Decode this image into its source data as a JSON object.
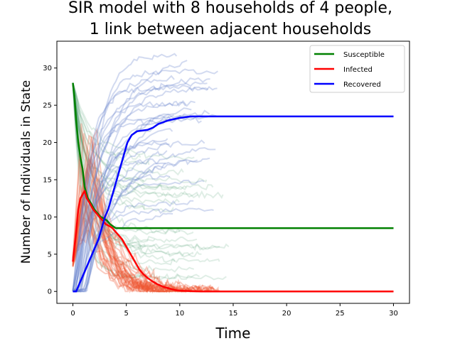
{
  "chart_data": {
    "type": "line",
    "title_line1": "SIR model with 8 households of 4 people,",
    "title_line2": "1 link between adjacent households",
    "xlabel": "Time",
    "ylabel": "Number of Individuals in State",
    "xlim": [
      -1.5,
      31.5
    ],
    "ylim": [
      -1.6,
      33.6
    ],
    "xticks": [
      0,
      5,
      10,
      15,
      20,
      25,
      30
    ],
    "yticks": [
      0,
      5,
      10,
      15,
      20,
      25,
      30
    ],
    "grid": false,
    "legend_position": "top-right",
    "series": [
      {
        "name": "Susceptible",
        "color": "#008000",
        "x": [
          0,
          0.15,
          0.3,
          0.5,
          0.7,
          0.9,
          1.1,
          1.4,
          1.7,
          2.0,
          2.3,
          2.6,
          2.9,
          3.2,
          3.5,
          3.8,
          4.0,
          5,
          10,
          20,
          30
        ],
        "y": [
          28,
          26,
          23,
          20,
          18,
          16.5,
          14,
          12.5,
          11.8,
          11,
          10.5,
          10,
          9.8,
          9.5,
          9,
          8.7,
          8.5,
          8.5,
          8.5,
          8.5,
          8.5
        ]
      },
      {
        "name": "Infected",
        "color": "#ff0000",
        "x": [
          0,
          0.15,
          0.3,
          0.5,
          0.7,
          0.9,
          1.1,
          1.3,
          1.6,
          1.9,
          2.2,
          2.5,
          2.8,
          3.1,
          3.4,
          3.7,
          4.0,
          4.3,
          4.6,
          5.0,
          5.4,
          5.8,
          6.2,
          6.6,
          7.0,
          7.5,
          8.0,
          8.5,
          9.0,
          9.5,
          10.0,
          12,
          14,
          20,
          30
        ],
        "y": [
          4,
          6,
          8,
          11,
          12.5,
          13,
          13.5,
          12.5,
          11.8,
          11,
          10.5,
          10,
          9.5,
          9,
          8.8,
          8.5,
          8,
          7.5,
          7,
          6,
          5,
          4,
          3,
          2.3,
          1.8,
          1.3,
          0.9,
          0.6,
          0.4,
          0.2,
          0.1,
          0,
          0,
          0,
          0
        ]
      },
      {
        "name": "Recovered",
        "color": "#0000ff",
        "x": [
          0,
          0.3,
          0.6,
          0.9,
          1.2,
          1.5,
          1.8,
          2.1,
          2.4,
          2.7,
          3.0,
          3.3,
          3.6,
          3.9,
          4.2,
          4.5,
          4.8,
          5.1,
          5.5,
          6.0,
          7.0,
          7.5,
          8.0,
          9.0,
          10.0,
          11.0,
          12.0,
          20,
          30
        ],
        "y": [
          0,
          0,
          1,
          2,
          3,
          4,
          5,
          6,
          7,
          8.5,
          10,
          11,
          12.5,
          14,
          15.5,
          17,
          18.5,
          20,
          21,
          21.5,
          21.7,
          22,
          22.5,
          23,
          23.3,
          23.5,
          23.5,
          23.5,
          23.5
        ]
      }
    ]
  }
}
